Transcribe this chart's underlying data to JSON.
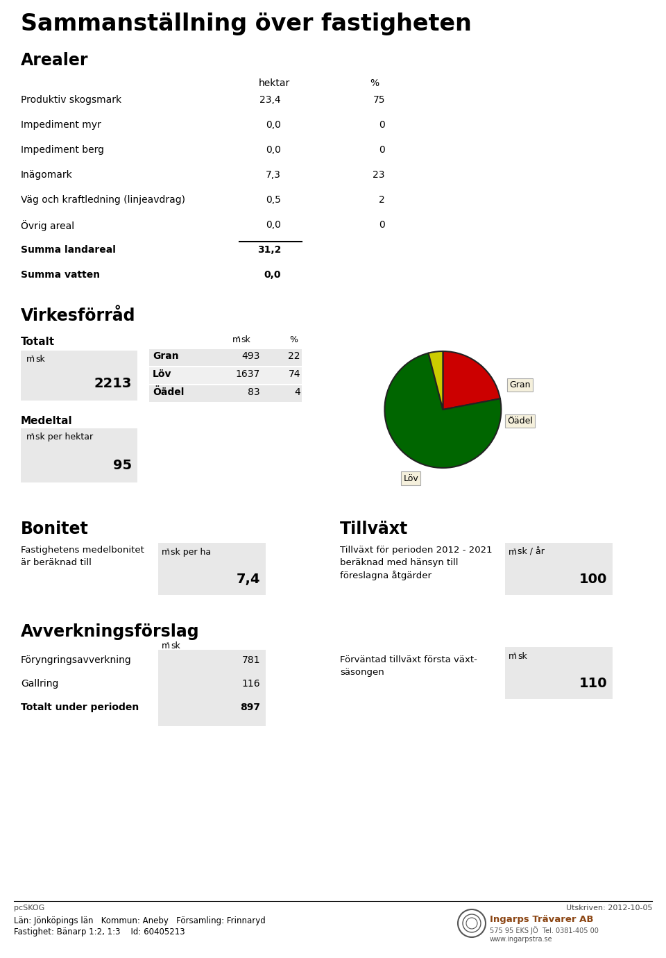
{
  "title": "Sammanställning över fastigheten",
  "arealer_header": "Arealer",
  "arealer_col1": "hektar",
  "arealer_col2": "%",
  "arealer_rows": [
    [
      "Produktiv skogsmark",
      "23,4",
      "75"
    ],
    [
      "Impediment myr",
      "0,0",
      "0"
    ],
    [
      "Impediment berg",
      "0,0",
      "0"
    ],
    [
      "Inägomark",
      "7,3",
      "23"
    ],
    [
      "Väg och kraftledning (linjeavdrag)",
      "0,5",
      "2"
    ],
    [
      "Övrig areal",
      "0,0",
      "0"
    ],
    [
      "Summa landareal",
      "31,2",
      ""
    ],
    [
      "Summa vatten",
      "0,0",
      ""
    ]
  ],
  "virkesforrad_header": "Virkesförråd",
  "totalt_label": "Totalt",
  "m3sk_value": "2213",
  "medeltal_label": "Medeltal",
  "medeltal_sub": "m³sk per hektar",
  "medeltal_value": "95",
  "pie_rows": [
    [
      "Gran",
      "493",
      "22"
    ],
    [
      "Löv",
      "1637",
      "74"
    ],
    [
      "Öädel",
      "83",
      "4"
    ]
  ],
  "pie_values": [
    22,
    74,
    4
  ],
  "pie_colors": [
    "#cc0000",
    "#006600",
    "#cccc00"
  ],
  "pie_labels": [
    "Gran",
    "Löv",
    "Öädel"
  ],
  "bonitet_header": "Bonitet",
  "bonitet_desc1": "Fastighetens medelbonitet",
  "bonitet_desc2": "är beräknad till",
  "bonitet_unit": "m³sk per ha",
  "bonitet_value": "7,4",
  "tillvaxt_header": "Tillväxt",
  "tillvaxt_desc1": "Tillväxt för perioden 2012 - 2021",
  "tillvaxt_desc2": "beräknad med hänsyn till",
  "tillvaxt_desc3": "föreslagna åtgärder",
  "tillvaxt_unit": "m³sk / år",
  "tillvaxt_value": "100",
  "avverkning_header": "Avverkningsförslag",
  "avverkning_rows": [
    [
      "Föryngringsavverkning",
      "781"
    ],
    [
      "Gallring",
      "116"
    ],
    [
      "Totalt under perioden",
      "897"
    ]
  ],
  "forvantad_desc1": "Förväntad tillväxt första växt-",
  "forvantad_desc2": "säsongen",
  "forvantad_value": "110",
  "footer_left": "pcSKOG",
  "footer_right": "Utskriven: 2012-10-05",
  "footer_line1": "Län: Jönköpings län   Kommun: Aneby   Församling: Frinnaryd",
  "footer_line2": "Fastighet: Bänarp 1:2, 1:3    Id: 60405213",
  "bg_color": "#ffffff",
  "gray_box": "#e8e8e8"
}
